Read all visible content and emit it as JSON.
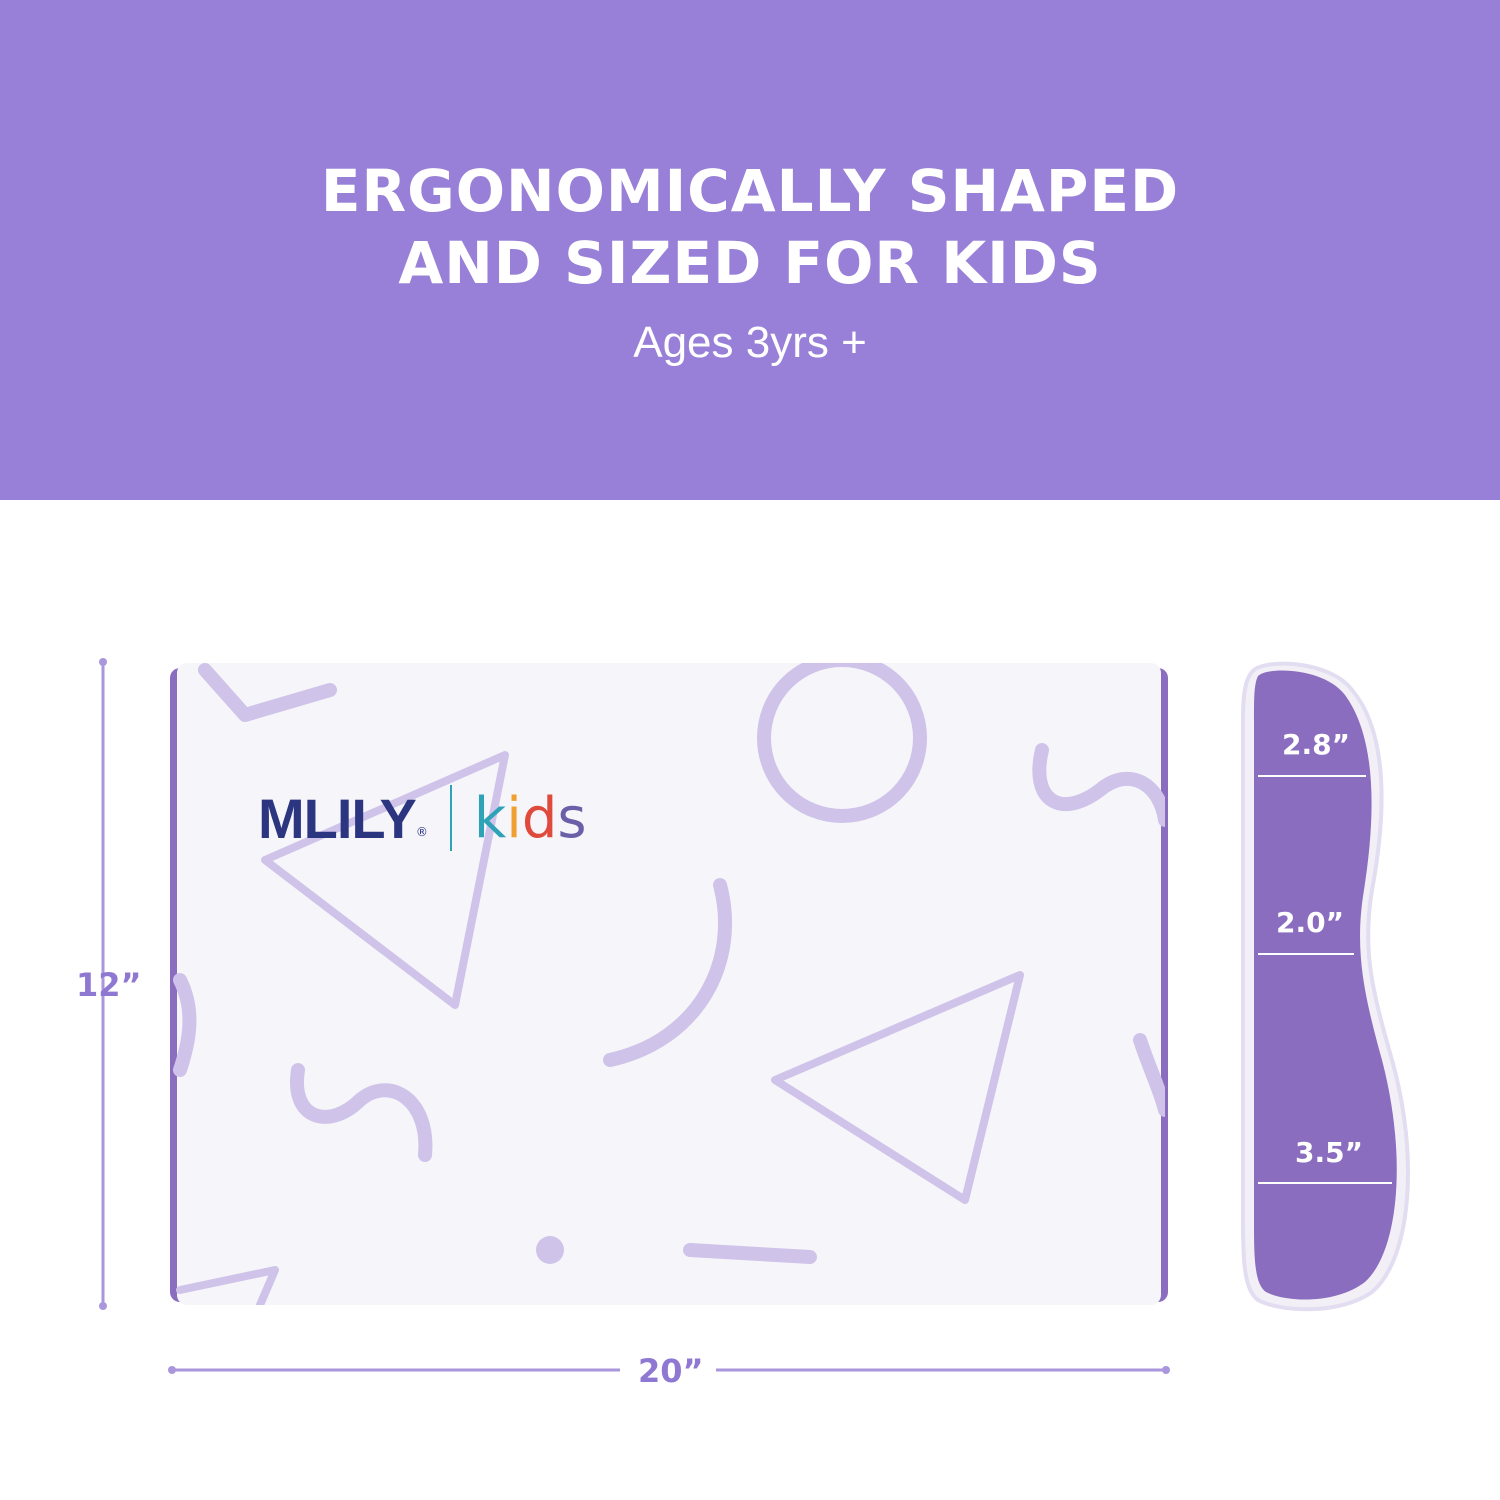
{
  "header": {
    "title_line1": "ERGONOMICALLY SHAPED",
    "title_line2": "AND SIZED FOR KIDS",
    "subtitle": "Ages 3yrs +"
  },
  "logo": {
    "brand": "MLILY",
    "registered": "®",
    "kids": [
      "k",
      "i",
      "d",
      "s"
    ],
    "kids_colors": [
      "#2ea3b8",
      "#f0a030",
      "#e04a3c",
      "#6b5fa8"
    ]
  },
  "dimensions": {
    "height": "12”",
    "width": "20”"
  },
  "profile": {
    "top": "2.8”",
    "middle": "2.0”",
    "bottom": "3.5”"
  },
  "colors": {
    "banner": "#9880d8",
    "accent": "#8f78d2",
    "foam": "#8b6dbf"
  }
}
